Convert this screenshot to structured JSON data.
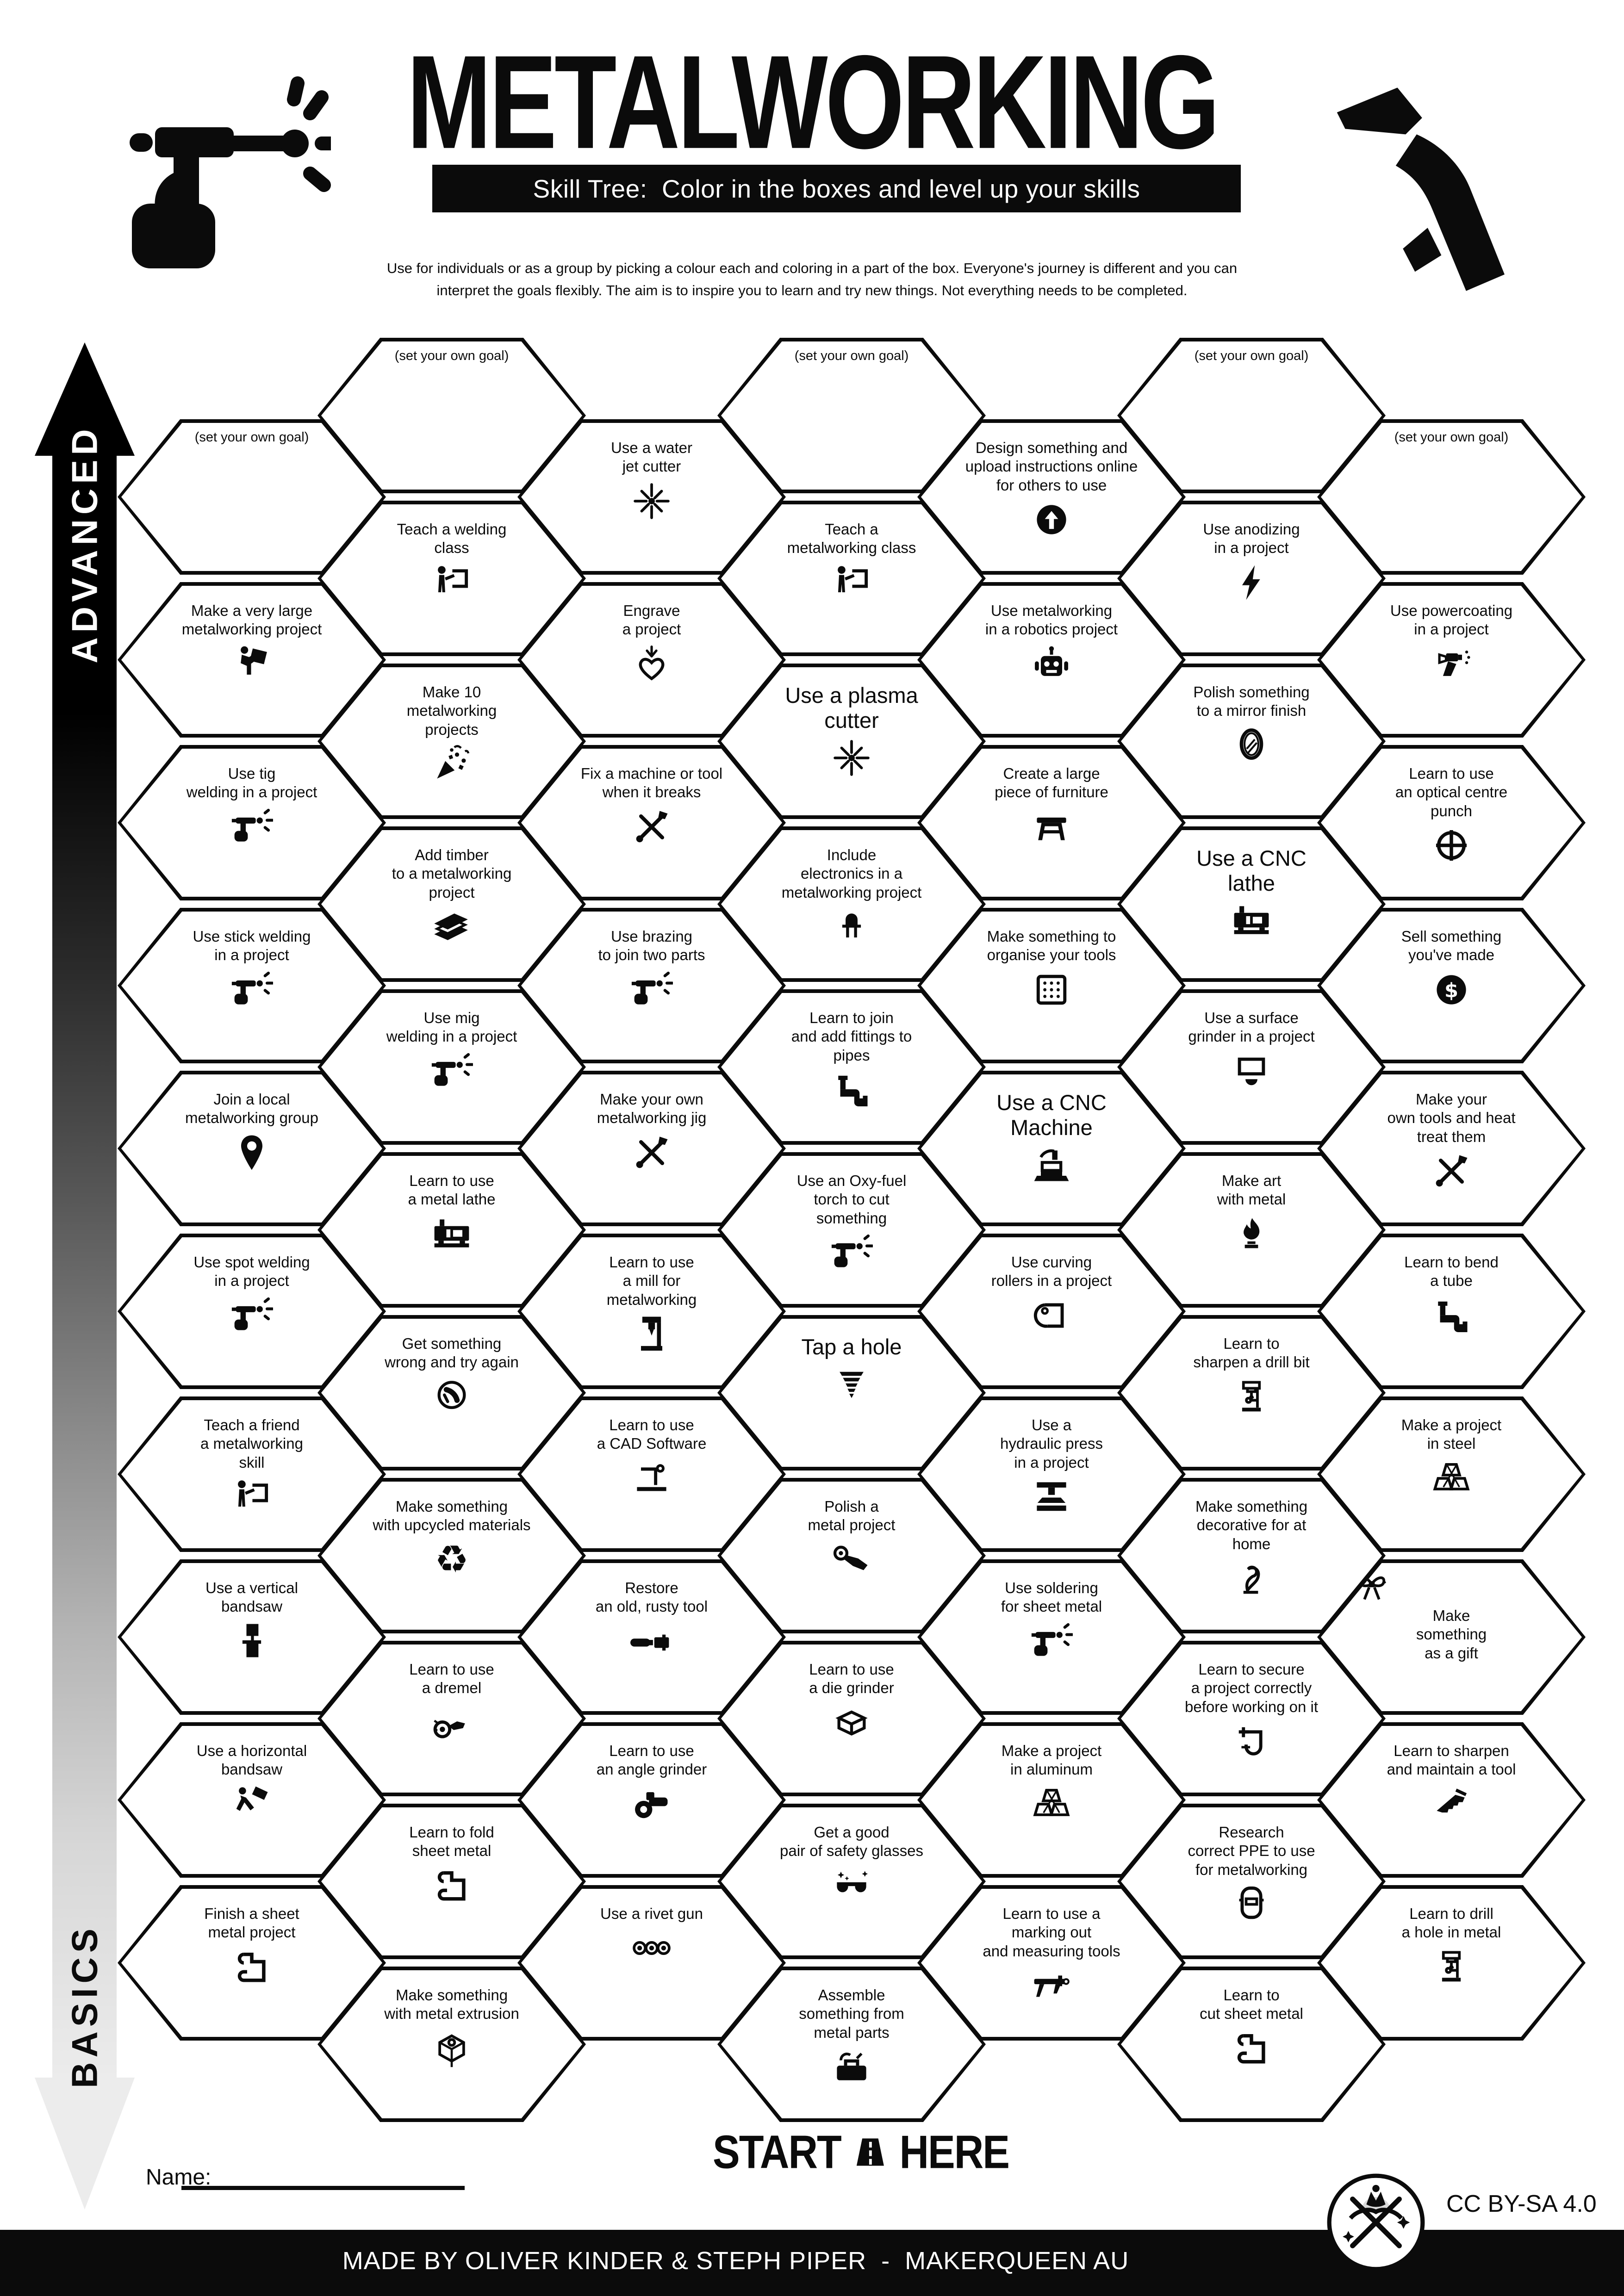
{
  "title": "METALWORKING",
  "subtitle": "Skill Tree:  Color in the boxes and level up your skills",
  "description": "Use for individuals or as a group by picking a colour each and coloring in a part of the box.  Everyone's journey is different and you can\ninterpret the goals flexibly.  The aim is to inspire you to learn and try new things. Not everything needs to be completed.",
  "side_axis": {
    "top_label": "ADVANCED",
    "bottom_label": "BASICS"
  },
  "start_marker": {
    "start": "START",
    "here": "HERE"
  },
  "name_field": {
    "label": "Name:",
    "value": ""
  },
  "license_label": "CC BY-SA 4.0",
  "footer_text": "MADE BY OLIVER KINDER & STEPH PIPER  -  MAKERQUEEN AU",
  "goal_placeholder": "(set your own goal)",
  "colors": {
    "ink": "#0b0b0b",
    "paper": "#ffffff"
  },
  "columns": [
    {
      "name": "column-1",
      "hexes": [
        {
          "label": "(set your own goal)",
          "goal": true
        },
        {
          "label": "Make a very large\nmetalworking project",
          "icon": "carry-large-project-icon"
        },
        {
          "label": "Use tig\nwelding in a project",
          "icon": "welding-torch-icon"
        },
        {
          "label": "Use stick welding\nin a project",
          "icon": "welding-torch-icon"
        },
        {
          "label": "Join a local\nmetalworking group",
          "icon": "map-pin-icon"
        },
        {
          "label": "Use spot welding\nin a project",
          "icon": "welding-torch-icon"
        },
        {
          "label": "Teach a friend\na metalworking\nskill",
          "icon": "teacher-board-icon"
        },
        {
          "label": "Use a vertical\nbandsaw",
          "icon": "vertical-bandsaw-icon"
        },
        {
          "label": "Use a horizontal\nbandsaw",
          "icon": "horizontal-bandsaw-icon"
        },
        {
          "label": "Finish a sheet\nmetal project",
          "icon": "sheet-metal-icon"
        }
      ]
    },
    {
      "name": "column-2",
      "hexes": [
        {
          "label": "(set your own goal)",
          "goal": true
        },
        {
          "label": "Teach a welding\nclass",
          "icon": "teacher-board-icon"
        },
        {
          "label": "Make 10\nmetalworking\nprojects",
          "icon": "confetti-icon"
        },
        {
          "label": "Add timber\nto a metalworking\nproject",
          "icon": "timber-icon"
        },
        {
          "label": "Use mig\nwelding in a project",
          "icon": "welding-torch-icon"
        },
        {
          "label": "Learn to use\na metal lathe",
          "icon": "lathe-icon"
        },
        {
          "label": "Get something\nwrong and try again",
          "icon": "facepalm-icon"
        },
        {
          "label": "Make something\nwith upcycled materials",
          "icon": "recycle-icon"
        },
        {
          "label": "Learn to use\na dremel",
          "icon": "dremel-icon"
        },
        {
          "label": "Learn to fold\nsheet metal",
          "icon": "sheet-metal-icon"
        },
        {
          "label": "Make something\nwith metal extrusion",
          "icon": "extrusion-icon"
        }
      ]
    },
    {
      "name": "column-3",
      "hexes": [
        {
          "label": "Use a water\njet cutter",
          "icon": "spark-burst-icon"
        },
        {
          "label": "Engrave\na project",
          "icon": "engrave-heart-icon"
        },
        {
          "label": "Fix a machine or tool\nwhen it breaks",
          "icon": "crossed-tools-icon"
        },
        {
          "label": "Use brazing\nto join two parts",
          "icon": "hand-torch-icon"
        },
        {
          "label": "Make your own\nmetalworking jig",
          "icon": "crossed-tools-icon"
        },
        {
          "label": "Learn to use\na mill for\nmetalworking",
          "icon": "mill-icon"
        },
        {
          "label": "Learn to use\na CAD Software",
          "icon": "cad-laptop-icon"
        },
        {
          "label": "Restore\nan old, rusty tool",
          "icon": "old-tool-icon"
        },
        {
          "label": "Learn to use\nan angle grinder",
          "icon": "angle-grinder-icon"
        },
        {
          "label": "Use a rivet gun",
          "icon": "rivets-icon"
        }
      ]
    },
    {
      "name": "column-4",
      "hexes": [
        {
          "label": "(set your own goal)",
          "goal": true
        },
        {
          "label": "Teach a\nmetalworking class",
          "icon": "teacher-board-icon"
        },
        {
          "label": "Use a plasma\ncutter",
          "icon": "spark-burst-icon",
          "large": true
        },
        {
          "label": "Include\nelectronics in a\nmetalworking project",
          "icon": "led-icon"
        },
        {
          "label": "Learn to join\nand add fittings to\npipes",
          "icon": "pipe-icon"
        },
        {
          "label": "Use an Oxy-fuel\ntorch to cut\nsomething",
          "icon": "hand-torch-icon"
        },
        {
          "label": "Tap a hole",
          "icon": "tap-thread-icon",
          "large": true
        },
        {
          "label": "Polish a\nmetal project",
          "icon": "polisher-icon"
        },
        {
          "label": "Learn to use\na die grinder",
          "icon": "die-cube-icon"
        },
        {
          "label": "Get a good\npair of safety glasses",
          "icon": "safety-glasses-icon"
        },
        {
          "label": "Assemble\nsomething from\nmetal parts",
          "icon": "toolbox-icon"
        }
      ]
    },
    {
      "name": "column-5",
      "hexes": [
        {
          "label": "Design something and\nupload instructions online\nfor others to use",
          "icon": "upload-icon"
        },
        {
          "label": "Use metalworking\nin a robotics project",
          "icon": "robot-icon"
        },
        {
          "label": "Create a large\npiece of furniture",
          "icon": "stool-icon"
        },
        {
          "label": "Make something to\norganise your tools",
          "icon": "pegboard-icon"
        },
        {
          "label": "Use a CNC\nMachine",
          "icon": "cnc-machine-icon",
          "large": true
        },
        {
          "label": "Use curving\nrollers in a project",
          "icon": "rolled-sheet-icon"
        },
        {
          "label": "Use a\nhydraulic press\nin a project",
          "icon": "hydraulic-press-icon"
        },
        {
          "label": "Use soldering\nfor sheet metal",
          "icon": "hand-torch-icon"
        },
        {
          "label": "Make a project\nin aluminum",
          "icon": "ingots-icon"
        },
        {
          "label": "Learn to use a\nmarking out\nand measuring tools",
          "icon": "caliper-icon"
        }
      ]
    },
    {
      "name": "column-6",
      "hexes": [
        {
          "label": "(set your own goal)",
          "goal": true
        },
        {
          "label": "Use anodizing\nin a project",
          "icon": "lightning-icon"
        },
        {
          "label": "Polish something\nto a mirror finish",
          "icon": "mirror-icon"
        },
        {
          "label": "Use a CNC\nlathe",
          "icon": "lathe-icon",
          "large": true
        },
        {
          "label": "Use a surface\ngrinder in a project",
          "icon": "surface-grinder-icon"
        },
        {
          "label": "Make art\nwith metal",
          "icon": "metal-art-icon"
        },
        {
          "label": "Learn to\nsharpen a drill bit",
          "icon": "drill-press-icon"
        },
        {
          "label": "Make something\ndecorative for at\nhome",
          "icon": "decorative-icon"
        },
        {
          "label": "Learn to secure\na project correctly\nbefore working on it",
          "icon": "clamp-icon"
        },
        {
          "label": "Research\ncorrect PPE to use\nfor metalworking",
          "icon": "welding-helmet-icon"
        },
        {
          "label": "Learn to\ncut sheet metal",
          "icon": "sheet-metal-icon"
        }
      ]
    },
    {
      "name": "column-7",
      "hexes": [
        {
          "label": "(set your own goal)",
          "goal": true
        },
        {
          "label": "Use powercoating\nin a project",
          "icon": "spray-gun-icon"
        },
        {
          "label": "Learn to use\nan optical centre\npunch",
          "icon": "centre-punch-icon"
        },
        {
          "label": "Sell something\nyou've made",
          "icon": "dollar-coin-icon"
        },
        {
          "label": "Make your\nown tools and heat\ntreat them",
          "icon": "crossed-tools-icon"
        },
        {
          "label": "Learn to bend\na tube",
          "icon": "pipe-icon"
        },
        {
          "label": "Make a project\nin steel",
          "icon": "ingots-icon"
        },
        {
          "label": "Make\nsomething\nas a gift",
          "icon": "gift-bow-icon",
          "icon_first": true
        },
        {
          "label": "Learn to sharpen\nand maintain a tool",
          "icon": "handsaw-icon"
        },
        {
          "label": "Learn to drill\na hole in metal",
          "icon": "drill-press-icon"
        }
      ]
    }
  ]
}
